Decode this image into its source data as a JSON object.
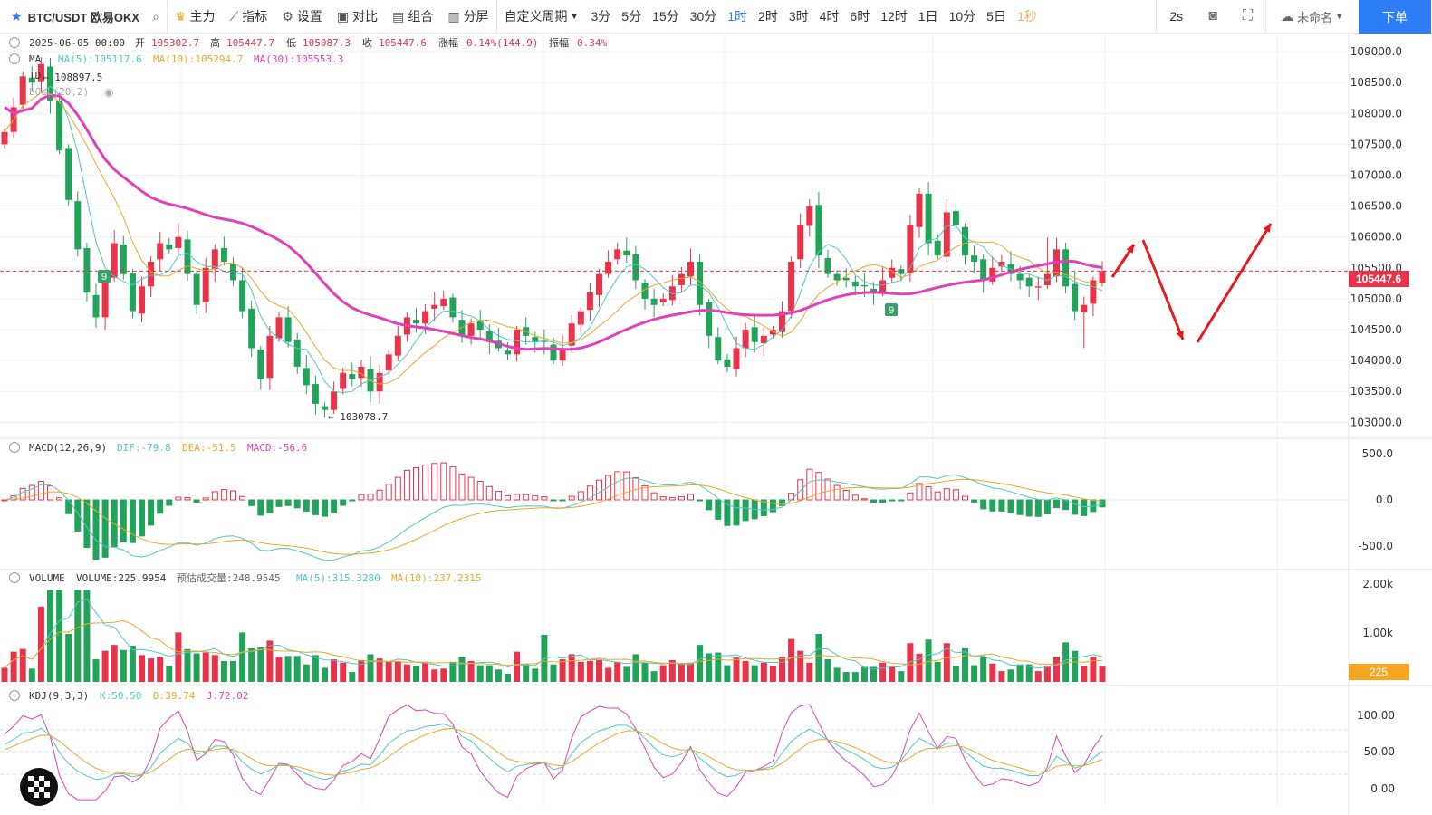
{
  "toolbar": {
    "symbol": "BTC/USDT 欧易OKX",
    "main": "主力",
    "indicator": "指标",
    "settings": "设置",
    "compare": "对比",
    "combo": "组合",
    "split": "分屏",
    "custom_period": "自定义周期",
    "periods": [
      {
        "label": "3分"
      },
      {
        "label": "5分"
      },
      {
        "label": "15分"
      },
      {
        "label": "30分"
      },
      {
        "label": "1时",
        "active": true
      },
      {
        "label": "2时"
      },
      {
        "label": "3时"
      },
      {
        "label": "4时"
      },
      {
        "label": "6时"
      },
      {
        "label": "12时"
      },
      {
        "label": "1日"
      },
      {
        "label": "10分"
      },
      {
        "label": "5日"
      },
      {
        "label": "1秒",
        "dim": true
      }
    ],
    "refresh": "2s",
    "layout_name": "未命名",
    "order_button": "下单"
  },
  "ohlc": {
    "date": "2025-06-05 00:00",
    "open_label": "开",
    "open": "105302.7",
    "high_label": "高",
    "high": "105447.7",
    "low_label": "低",
    "low": "105087.3",
    "close_label": "收",
    "close": "105447.6",
    "change_label": "涨幅",
    "change": "0.14%(144.9)",
    "amp_label": "振幅",
    "amp": "0.34%"
  },
  "ma": {
    "name": "MA",
    "ma5": "MA(5):105117.6",
    "ma10": "MA(10):105294.7",
    "ma30": "MA(30):105553.3"
  },
  "td_label": "TD",
  "boll_label": "BOLL(20,2)",
  "annotations": {
    "high_mark": "108897.5",
    "low_mark": "103078.7",
    "td9": "9",
    "price_tag": "105447.6",
    "vol_tag": "225"
  },
  "macd": {
    "name": "MACD(12,26,9)",
    "dif": "DIF:-79.8",
    "dea": "DEA:-51.5",
    "macd": "MACD:-56.6",
    "ticks": [
      "500.0",
      "0.0",
      "-500.0"
    ]
  },
  "volume": {
    "name": "VOLUME",
    "vol": "VOLUME:225.9954",
    "est": "预估成交量:248.9545",
    "ma5": "MA(5):315.3280",
    "ma10": "MA(10):237.2315",
    "ticks": [
      "2.00k",
      "1.00k"
    ]
  },
  "kdj": {
    "name": "KDJ(9,3,3)",
    "k": "K:50.50",
    "d": "D:39.74",
    "j": "J:72.02",
    "ticks": [
      "100.00",
      "50.00",
      "0.00"
    ]
  },
  "price_ticks": [
    "109000.0",
    "108500.0",
    "108000.0",
    "107500.0",
    "107000.0",
    "106500.0",
    "106000.0",
    "105500.0",
    "105000.0",
    "104500.0",
    "104000.0",
    "103500.0",
    "103000.0"
  ],
  "colors": {
    "up": "#e8334a",
    "down": "#21a35a",
    "ma5": "#4fc7c2",
    "ma10": "#e9a72b",
    "ma30": "#e040b8",
    "accent": "#2d7df6",
    "arrow": "#e8191c"
  },
  "chart_data": {
    "type": "candlestick",
    "interval": "1H",
    "ylim": [
      102800,
      109250
    ],
    "closes": [
      107700,
      108100,
      108600,
      108500,
      108800,
      108200,
      107400,
      106600,
      105800,
      105100,
      104700,
      105300,
      105900,
      105400,
      104800,
      105200,
      105600,
      105900,
      105800,
      106000,
      105400,
      104900,
      105500,
      105800,
      105600,
      105300,
      104800,
      104200,
      103700,
      104400,
      104700,
      104300,
      103900,
      103600,
      103300,
      103200,
      103500,
      103800,
      103700,
      103900,
      103500,
      103800,
      104100,
      104400,
      104700,
      104600,
      104800,
      104900,
      105000,
      104700,
      104400,
      104600,
      104500,
      104300,
      104200,
      104100,
      104500,
      104400,
      104300,
      104300,
      104000,
      104200,
      104600,
      104800,
      105100,
      105400,
      105600,
      105800,
      105700,
      105300,
      105000,
      104900,
      105000,
      105200,
      105400,
      105600,
      104900,
      104400,
      104000,
      103900,
      104200,
      104500,
      104300,
      104400,
      104500,
      104800,
      105600,
      106200,
      106500,
      105700,
      105400,
      105300,
      105300,
      105200,
      105200,
      105100,
      105300,
      105500,
      105400,
      106200,
      106700,
      105900,
      105700,
      106400,
      106200,
      105700,
      105600,
      105300,
      105500,
      105600,
      105400,
      105300,
      105200,
      105200,
      105400,
      105800,
      105200,
      104800,
      104900,
      105300,
      105448
    ]
  }
}
